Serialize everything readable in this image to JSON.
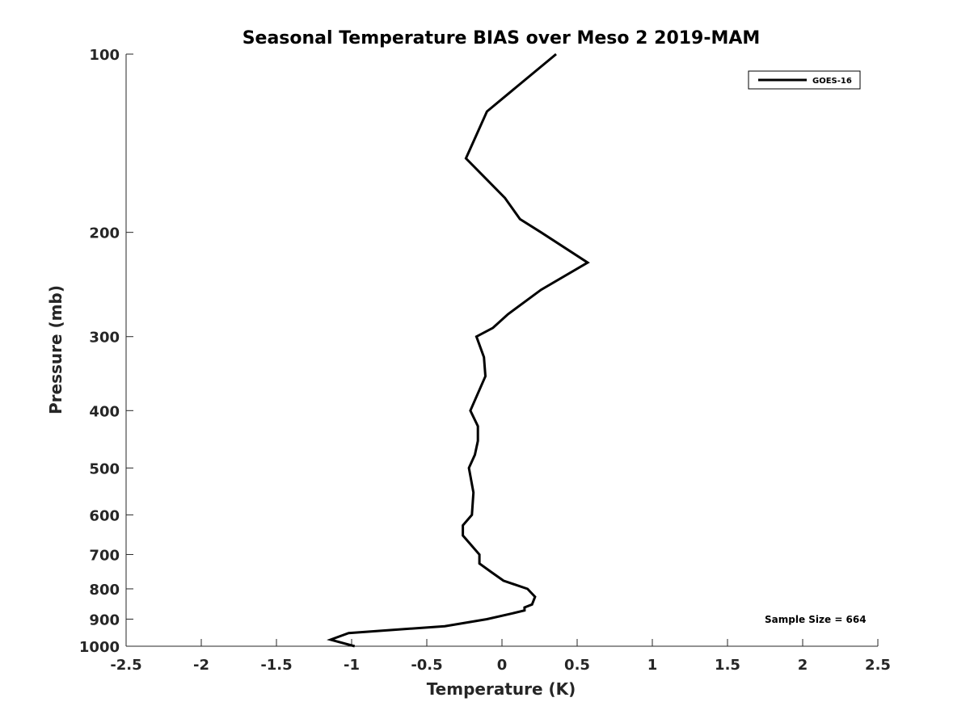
{
  "chart_data": {
    "type": "line",
    "title": "Seasonal Temperature BIAS over Meso 2  2019-MAM",
    "xlabel": "Temperature (K)",
    "ylabel": "Pressure (mb)",
    "xlim": [
      -2.5,
      2.5
    ],
    "ylim": [
      100,
      1000
    ],
    "y_scale": "log",
    "y_reversed": true,
    "x_ticks": [
      -2.5,
      -2,
      -1.5,
      -1,
      -0.5,
      0,
      0.5,
      1,
      1.5,
      2,
      2.5
    ],
    "x_tick_labels": [
      "-2.5",
      "-2",
      "-1.5",
      "-1",
      "-0.5",
      "0",
      "0.5",
      "1",
      "1.5",
      "2",
      "2.5"
    ],
    "y_ticks": [
      100,
      200,
      300,
      400,
      500,
      600,
      700,
      800,
      900,
      1000
    ],
    "y_tick_labels": [
      "100",
      "200",
      "300",
      "400",
      "500",
      "600",
      "700",
      "800",
      "900",
      "1000"
    ],
    "grid": false,
    "legend_position": "top-right",
    "series": [
      {
        "name": "GOES-16",
        "color": "#000000",
        "x": [
          0.36,
          -0.1,
          -0.24,
          0.02,
          0.12,
          0.26,
          0.57,
          0.26,
          0.04,
          -0.06,
          -0.17,
          -0.12,
          -0.11,
          -0.21,
          -0.16,
          -0.16,
          -0.18,
          -0.22,
          -0.19,
          -0.2,
          -0.26,
          -0.26,
          -0.15,
          -0.15,
          -0.07,
          0.01,
          0.17,
          0.22,
          0.2,
          0.15,
          0.15,
          0.07,
          -0.1,
          -0.38,
          -1.02,
          -1.14,
          -0.98
        ],
        "y": [
          100,
          125,
          150,
          175,
          190,
          200,
          225,
          250,
          275,
          290,
          300,
          325,
          350,
          400,
          425,
          450,
          475,
          500,
          550,
          600,
          625,
          650,
          700,
          725,
          750,
          775,
          800,
          825,
          850,
          860,
          870,
          880,
          900,
          925,
          950,
          975,
          1000
        ]
      }
    ],
    "annotations": [
      {
        "text": "Sample Size = 664",
        "position": "bottom-right"
      }
    ]
  }
}
